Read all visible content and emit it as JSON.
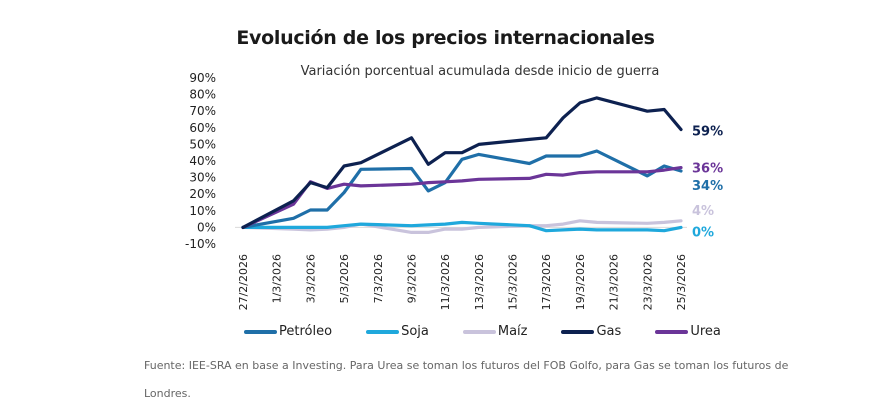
{
  "chart_data": {
    "type": "line",
    "title": "Evolución de los precios internacionales",
    "subtitle": "Variación porcentual acumulada desde inicio de guerra",
    "xlabel": "",
    "ylabel": "",
    "ylim": [
      -10,
      90
    ],
    "yticks": [
      "90%",
      "80%",
      "70%",
      "60%",
      "50%",
      "40%",
      "30%",
      "20%",
      "10%",
      "0%",
      "-10%"
    ],
    "ytick_values": [
      90,
      80,
      70,
      60,
      50,
      40,
      30,
      20,
      10,
      0,
      -10
    ],
    "xticks": [
      "27/2/2026",
      "1/3/2026",
      "3/3/2026",
      "5/3/2026",
      "7/3/2026",
      "9/3/2026",
      "11/3/2026",
      "13/3/2026",
      "15/3/2026",
      "17/3/2026",
      "19/3/2026",
      "21/3/2026",
      "23/3/2026",
      "25/3/2026"
    ],
    "xtick_day_index": [
      0,
      2,
      4,
      6,
      8,
      10,
      12,
      14,
      16,
      18,
      20,
      22,
      24,
      26
    ],
    "x_dates": [
      "27/2",
      "2/3",
      "3/3",
      "4/3",
      "5/3",
      "6/3",
      "9/3",
      "10/3",
      "11/3",
      "12/3",
      "13/3",
      "16/3",
      "17/3",
      "18/3",
      "19/3",
      "20/3",
      "23/3",
      "24/3",
      "25/3"
    ],
    "x_day_index": [
      0,
      3,
      4,
      5,
      6,
      7,
      10,
      11,
      12,
      13,
      14,
      17,
      18,
      19,
      20,
      21,
      24,
      25,
      26
    ],
    "total_days": 26,
    "grid": false,
    "legend_position": "bottom",
    "series": [
      {
        "name": "Petróleo",
        "color": "#1f6fa8",
        "values": [
          0,
          5.5,
          10.5,
          10.5,
          21,
          35,
          35.5,
          22,
          27,
          41,
          44,
          38.5,
          43,
          43,
          43,
          46,
          31,
          37,
          34
        ],
        "end_label": "34%",
        "end_label_color": "#1f6fa8"
      },
      {
        "name": "Soja",
        "color": "#1fa8dc",
        "values": [
          0,
          0,
          0,
          0,
          1,
          2,
          1,
          1.5,
          2,
          3,
          2.5,
          1,
          -2,
          -1.5,
          -1,
          -1.5,
          -1.5,
          -2,
          0
        ],
        "end_label": "0%",
        "end_label_color": "#1fa8dc"
      },
      {
        "name": "Maíz",
        "color": "#c9c3dc",
        "values": [
          0,
          -1,
          -1.5,
          -1,
          0,
          2,
          -3,
          -3,
          -1,
          -1,
          0,
          1,
          1,
          2,
          4,
          3,
          2.5,
          3,
          4
        ],
        "end_label": "4%",
        "end_label_color": "#c9c3dc"
      },
      {
        "name": "Gas",
        "color": "#0d2150",
        "values": [
          0,
          16,
          27,
          24,
          37,
          39,
          54,
          38,
          45,
          45,
          50,
          53,
          54,
          66,
          75,
          78,
          70,
          71,
          59
        ],
        "end_label": "59%",
        "end_label_color": "#0d2150"
      },
      {
        "name": "Urea",
        "color": "#6b3598",
        "values": [
          0,
          14,
          27.5,
          23.5,
          26,
          25,
          26,
          27,
          27.5,
          28,
          29,
          29.5,
          32,
          31.5,
          33,
          33.5,
          33.5,
          34.5,
          36
        ],
        "end_label": "36%",
        "end_label_color": "#6b3598"
      }
    ]
  },
  "source_note": "Fuente: IEE-SRA en base a Investing. Para Urea se toman los futuros del FOB Golfo, para Gas se toman los futuros de Londres."
}
